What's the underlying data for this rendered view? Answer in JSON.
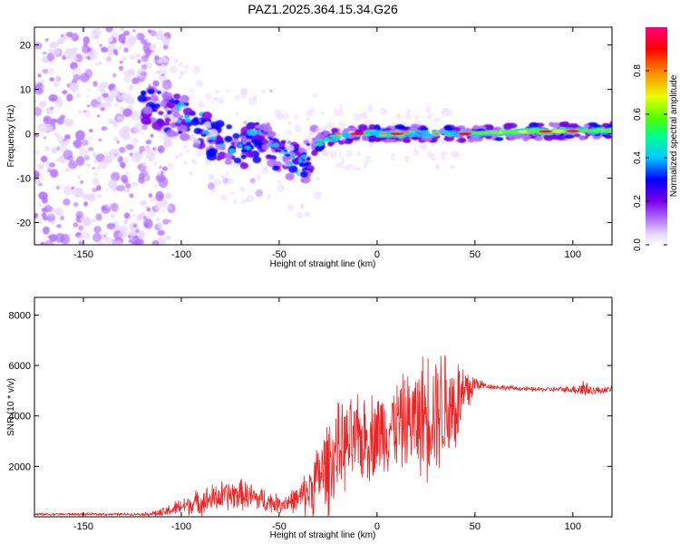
{
  "figure_title": "PAZ1.2025.364.15.34.G26",
  "chart_data": [
    {
      "type": "heatmap",
      "title": "PAZ1.2025.364.15.34.G26",
      "xlabel": "Height of straight line (km)",
      "ylabel": "Frequency (Hz)",
      "xlim": [
        -175,
        120
      ],
      "ylim": [
        -25,
        24
      ],
      "xticks": [
        -150,
        -100,
        -50,
        0,
        50,
        100
      ],
      "yticks": [
        -20,
        -10,
        0,
        10,
        20
      ],
      "colorbar": {
        "label": "Normalized spectral amplitude",
        "range": [
          0.0,
          1.0
        ],
        "ticks": [
          "0.0",
          "0.2",
          "0.4",
          "0.6",
          "0.8"
        ],
        "colormap": [
          "#ffffff",
          "#e8d8ff",
          "#b070ff",
          "#7a00e8",
          "#0000ff",
          "#00c8ff",
          "#00ff90",
          "#50ff00",
          "#e8ff00",
          "#ff8000",
          "#ff0000",
          "#ff0080"
        ]
      },
      "trace": {
        "x": [
          -120,
          -110,
          -100,
          -90,
          -80,
          -70,
          -60,
          -50,
          -40,
          -35,
          -33,
          -25,
          -10,
          0,
          20,
          40,
          60,
          80,
          100,
          120
        ],
        "y": [
          8,
          5,
          4,
          1,
          -2,
          -4,
          -1,
          -4,
          -7,
          -6,
          -3,
          -1,
          0,
          0,
          0,
          0,
          0.3,
          0.5,
          0.6,
          0.8
        ]
      }
    },
    {
      "type": "line",
      "title": "",
      "xlabel": "Height of straight line (km)",
      "ylabel": "SNR (10 * v/v)",
      "xlim": [
        -175,
        120
      ],
      "ylim": [
        0,
        8700
      ],
      "xticks": [
        -150,
        -100,
        -50,
        0,
        50,
        100
      ],
      "yticks": [
        2000,
        4000,
        6000,
        8000
      ],
      "series": [
        {
          "name": "SNR",
          "color": "#ee2222",
          "envelope": {
            "x": [
              -175,
              -120,
              -110,
              -100,
              -90,
              -80,
              -70,
              -60,
              -50,
              -40,
              -35,
              -30,
              -25,
              -20,
              -10,
              0,
              10,
              20,
              25,
              30,
              35,
              40,
              45,
              50,
              55,
              60,
              80,
              100,
              105,
              110,
              120
            ],
            "mean": [
              100,
              100,
              150,
              400,
              600,
              800,
              900,
              700,
              500,
              700,
              1000,
              1600,
              2000,
              2700,
              3000,
              3300,
              3700,
              3800,
              4100,
              4300,
              4400,
              4400,
              4800,
              5300,
              5200,
              5150,
              5050,
              5050,
              5100,
              5000,
              5050
            ],
            "amplitude": [
              60,
              60,
              200,
              400,
              600,
              700,
              700,
              600,
              400,
              600,
              1200,
              1600,
              2200,
              2000,
              2000,
              2000,
              2000,
              2400,
              3000,
              2800,
              3000,
              2400,
              1600,
              400,
              150,
              120,
              100,
              150,
              500,
              200,
              120
            ]
          }
        }
      ]
    }
  ]
}
